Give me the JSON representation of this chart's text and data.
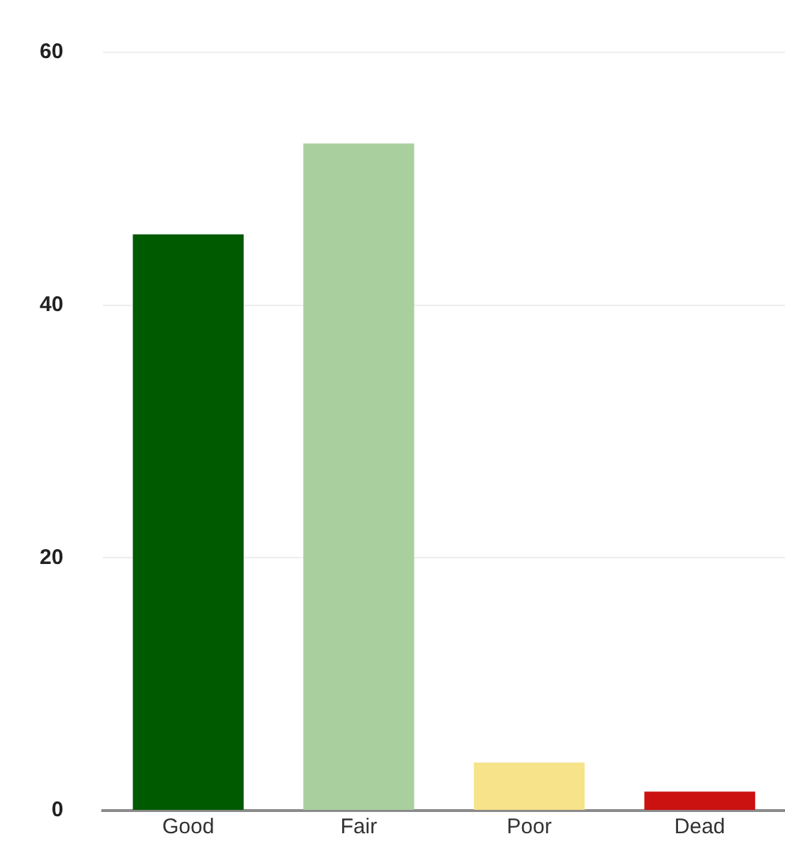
{
  "chart_data": {
    "type": "bar",
    "categories": [
      "Good",
      "Fair",
      "Poor",
      "Dead"
    ],
    "values": [
      45.6,
      52.8,
      3.8,
      1.5
    ],
    "colors": [
      "#005a00",
      "#a9cf9f",
      "#f6e38a",
      "#cc1111"
    ],
    "ylim": [
      0,
      60
    ],
    "yticks": [
      0,
      20,
      40,
      60
    ],
    "grid": "y",
    "legend": false
  }
}
